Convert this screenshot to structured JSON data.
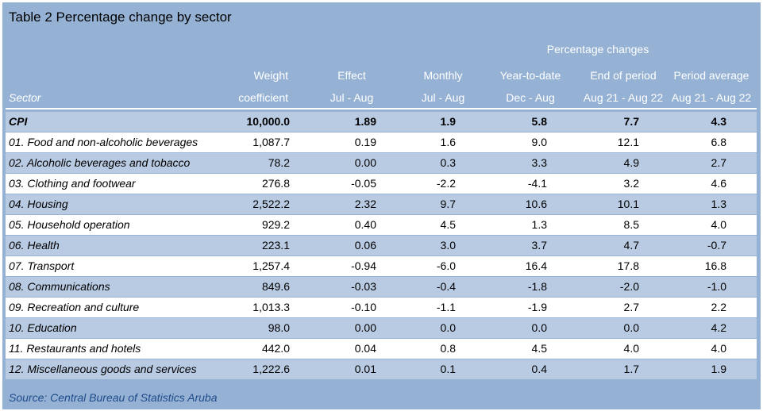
{
  "title": "Table 2 Percentage change by sector",
  "header": {
    "group_label": "Percentage changes",
    "sector_label": "Sector",
    "columns": [
      {
        "line1": "Weight",
        "line2": "coefficient"
      },
      {
        "line1": "Effect",
        "line2": "Jul - Aug"
      },
      {
        "line1": "Monthly",
        "line2": "Jul - Aug"
      },
      {
        "line1": "Year-to-date",
        "line2": "Dec - Aug"
      },
      {
        "line1": "End of period",
        "line2": "Aug 21 - Aug 22"
      },
      {
        "line1": "Period average",
        "line2": "Aug 21 - Aug 22"
      }
    ]
  },
  "rows": [
    {
      "name": "CPI",
      "bold": true,
      "values": [
        "10,000.0",
        "1.89",
        "1.9",
        "5.8",
        "7.7",
        "4.3"
      ]
    },
    {
      "name": "01. Food and non-alcoholic beverages",
      "values": [
        "1,087.7",
        "0.19",
        "1.6",
        "9.0",
        "12.1",
        "6.8"
      ]
    },
    {
      "name": "02. Alcoholic beverages and tobacco",
      "values": [
        "78.2",
        "0.00",
        "0.3",
        "3.3",
        "4.9",
        "2.7"
      ]
    },
    {
      "name": "03. Clothing and footwear",
      "values": [
        "276.8",
        "-0.05",
        "-2.2",
        "-4.1",
        "3.2",
        "4.6"
      ]
    },
    {
      "name": "04. Housing",
      "values": [
        "2,522.2",
        "2.32",
        "9.7",
        "10.6",
        "10.1",
        "1.3"
      ]
    },
    {
      "name": "05. Household operation",
      "values": [
        "929.2",
        "0.40",
        "4.5",
        "1.3",
        "8.5",
        "4.0"
      ]
    },
    {
      "name": "06. Health",
      "values": [
        "223.1",
        "0.06",
        "3.0",
        "3.7",
        "4.7",
        "-0.7"
      ]
    },
    {
      "name": "07. Transport",
      "values": [
        "1,257.4",
        "-0.94",
        "-6.0",
        "16.4",
        "17.8",
        "16.8"
      ]
    },
    {
      "name": "08. Communications",
      "values": [
        "849.6",
        "-0.03",
        "-0.4",
        "-1.8",
        "-2.0",
        "-1.0"
      ]
    },
    {
      "name": "09. Recreation and culture",
      "values": [
        "1,013.3",
        "-0.10",
        "-1.1",
        "-1.9",
        "2.7",
        "2.2"
      ]
    },
    {
      "name": "10. Education",
      "values": [
        "98.0",
        "0.00",
        "0.0",
        "0.0",
        "0.0",
        "4.2"
      ]
    },
    {
      "name": "11. Restaurants and hotels",
      "values": [
        "442.0",
        "0.04",
        "0.8",
        "4.5",
        "4.0",
        "4.0"
      ]
    },
    {
      "name": "12. Miscellaneous goods and services",
      "values": [
        "1,222.6",
        "0.01",
        "0.1",
        "0.4",
        "1.7",
        "1.9"
      ]
    }
  ],
  "source": "Source: Central Bureau of Statistics Aruba",
  "colors": {
    "frame_bg": "#95b2d5",
    "row_alt": "#b9cbe3",
    "row_white": "#ffffff",
    "header_text": "#ffffff",
    "source_text": "#1f4a8a"
  }
}
